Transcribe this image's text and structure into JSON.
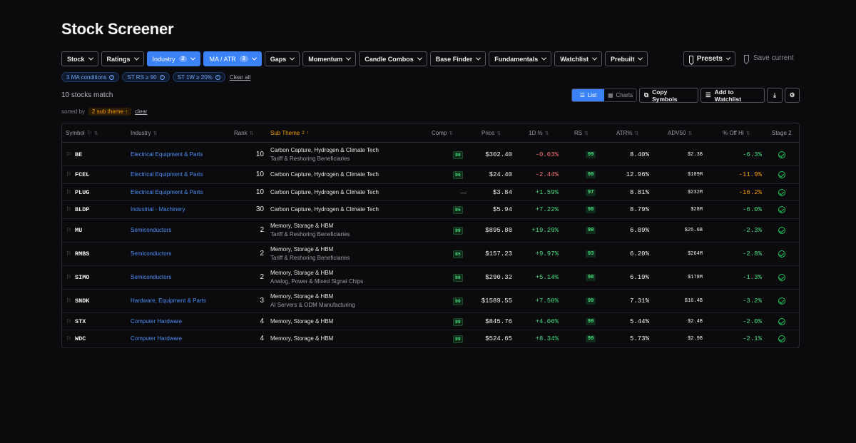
{
  "page": {
    "title": "Stock Screener"
  },
  "filters": [
    {
      "label": "Stock",
      "active": false,
      "count": ""
    },
    {
      "label": "Ratings",
      "active": false,
      "count": ""
    },
    {
      "label": "Industry",
      "active": true,
      "count": "2"
    },
    {
      "label": "MA / ATR",
      "active": true,
      "count": "3"
    },
    {
      "label": "Gaps",
      "active": false,
      "count": ""
    },
    {
      "label": "Momentum",
      "active": false,
      "count": ""
    },
    {
      "label": "Candle Combos",
      "active": false,
      "count": ""
    },
    {
      "label": "Base Finder",
      "active": false,
      "count": ""
    },
    {
      "label": "Fundamentals",
      "active": false,
      "count": ""
    },
    {
      "label": "Watchlist",
      "active": false,
      "count": ""
    },
    {
      "label": "Prebuilt",
      "active": false,
      "count": ""
    }
  ],
  "presets_label": "Presets",
  "save_current_label": "Save current",
  "chips": [
    "3 MA conditions",
    "ST RS ≥ 90",
    "ST 1W ≥ 20%"
  ],
  "clear_all_label": "Clear all",
  "match_text": "10 stocks match",
  "sorted": {
    "prefix": "sorted by",
    "chip": "2 sub theme ↑",
    "clear": "clear"
  },
  "view": {
    "list": "List",
    "charts": "Charts"
  },
  "actions": {
    "copy": "Copy Symbols",
    "watchlist": "Add to Watchlist"
  },
  "table": {
    "columns": {
      "symbol": "Symbol",
      "industry": "Industry",
      "rank": "Rank",
      "subtheme": "Sub Theme",
      "subtheme_count": "2",
      "comp": "Comp",
      "price": "Price",
      "d1": "1D %",
      "rs": "RS",
      "atr": "ATR%",
      "adv50": "ADV50",
      "offhi": "% Off Hi",
      "stage2": "Stage 2"
    },
    "rows": [
      {
        "symbol": "BE",
        "industry": "Electrical Equipment & Parts",
        "rank": "10",
        "sub1": "Carbon Capture, Hydrogen & Climate Tech",
        "sub2": "Tariff & Reshoring Beneficiaries",
        "comp": "98",
        "price": "$302.40",
        "d1": "-0.03%",
        "rs": "99",
        "atr": "8.40%",
        "adv": "$2.3B",
        "off": "-6.3%",
        "offc": "ok"
      },
      {
        "symbol": "FCEL",
        "industry": "Electrical Equipment & Parts",
        "rank": "10",
        "sub1": "Carbon Capture, Hydrogen & Climate Tech",
        "sub2": "",
        "comp": "96",
        "price": "$24.40",
        "d1": "-2.44%",
        "rs": "99",
        "atr": "12.96%",
        "adv": "$109M",
        "off": "-11.9%",
        "offc": "warn"
      },
      {
        "symbol": "PLUG",
        "industry": "Electrical Equipment & Parts",
        "rank": "10",
        "sub1": "Carbon Capture, Hydrogen & Climate Tech",
        "sub2": "",
        "comp": "—",
        "price": "$3.84",
        "d1": "+1.59%",
        "rs": "97",
        "atr": "8.81%",
        "adv": "$232M",
        "off": "-16.2%",
        "offc": "warn"
      },
      {
        "symbol": "BLDP",
        "industry": "Industrial - Machinery",
        "rank": "30",
        "sub1": "Carbon Capture, Hydrogen & Climate Tech",
        "sub2": "",
        "comp": "85",
        "price": "$5.94",
        "d1": "+7.22%",
        "rs": "98",
        "atr": "8.79%",
        "adv": "$28M",
        "off": "-6.0%",
        "offc": "ok"
      },
      {
        "symbol": "MU",
        "industry": "Semiconductors",
        "rank": "2",
        "sub1": "Memory, Storage & HBM",
        "sub2": "Tariff & Reshoring Beneficiaries",
        "comp": "99",
        "price": "$895.88",
        "d1": "+19.29%",
        "rs": "99",
        "atr": "6.89%",
        "adv": "$25.6B",
        "off": "-2.3%",
        "offc": "ok"
      },
      {
        "symbol": "RMBS",
        "industry": "Semiconductors",
        "rank": "2",
        "sub1": "Memory, Storage & HBM",
        "sub2": "Tariff & Reshoring Beneficiaries",
        "comp": "85",
        "price": "$157.23",
        "d1": "+9.97%",
        "rs": "93",
        "atr": "6.20%",
        "adv": "$264M",
        "off": "-2.8%",
        "offc": "ok"
      },
      {
        "symbol": "SIMO",
        "industry": "Semiconductors",
        "rank": "2",
        "sub1": "Memory, Storage & HBM",
        "sub2": "Analog, Power & Mixed Signal Chips",
        "comp": "98",
        "price": "$290.32",
        "d1": "+5.14%",
        "rs": "98",
        "atr": "6.19%",
        "adv": "$178M",
        "off": "-1.3%",
        "offc": "ok"
      },
      {
        "symbol": "SNDK",
        "industry": "Hardware, Equipment & Parts",
        "rank": "3",
        "sub1": "Memory, Storage & HBM",
        "sub2": "AI Servers & ODM Manufacturing",
        "comp": "99",
        "price": "$1589.55",
        "d1": "+7.50%",
        "rs": "99",
        "atr": "7.31%",
        "adv": "$16.4B",
        "off": "-3.2%",
        "offc": "ok"
      },
      {
        "symbol": "STX",
        "industry": "Computer Hardware",
        "rank": "4",
        "sub1": "Memory, Storage & HBM",
        "sub2": "",
        "comp": "99",
        "price": "$845.76",
        "d1": "+4.06%",
        "rs": "99",
        "atr": "5.44%",
        "adv": "$2.4B",
        "off": "-2.0%",
        "offc": "ok"
      },
      {
        "symbol": "WDC",
        "industry": "Computer Hardware",
        "rank": "4",
        "sub1": "Memory, Storage & HBM",
        "sub2": "",
        "comp": "99",
        "price": "$524.65",
        "d1": "+8.34%",
        "rs": "99",
        "atr": "5.73%",
        "adv": "$2.9B",
        "off": "-2.1%",
        "offc": "ok"
      }
    ]
  }
}
